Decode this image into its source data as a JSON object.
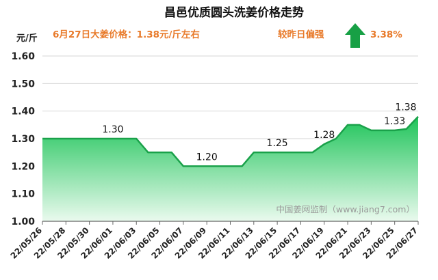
{
  "colors": {
    "accent_text": "#e87a2a",
    "line": "#1aa14a",
    "fill_top": "#1fc45a",
    "fill_bottom": "#eafaee",
    "arrow": "#17a045"
  },
  "header": {
    "price_note": "6月27日大姜价格：1.38元/斤左右",
    "compare_label": "较昨日偏强",
    "change_percent": "3.38%",
    "arrow_icon": "up-arrow-icon"
  },
  "watermark": "中国姜网监制（www.jiang7.com）",
  "chart_data": {
    "type": "area",
    "title": "昌邑优质圆头洗姜价格走势",
    "ylabel": "元/斤",
    "xlabel": "",
    "ylim": [
      1.0,
      1.6
    ],
    "yticks": [
      "1.00",
      "1.10",
      "1.20",
      "1.30",
      "1.40",
      "1.50",
      "1.60"
    ],
    "x_tick_labels": [
      "22/05/26",
      "22/05/28",
      "22/05/30",
      "22/06/01",
      "22/06/03",
      "22/06/05",
      "22/06/07",
      "22/06/09",
      "22/06/11",
      "22/06/13",
      "22/06/15",
      "22/06/17",
      "22/06/19",
      "22/06/21",
      "22/06/23",
      "22/06/25",
      "22/06/27"
    ],
    "series": [
      {
        "x": [
          "22/05/26",
          "22/05/27",
          "22/05/28",
          "22/05/29",
          "22/05/30",
          "22/05/31",
          "22/06/01",
          "22/06/02",
          "22/06/03",
          "22/06/04",
          "22/06/05",
          "22/06/06",
          "22/06/07",
          "22/06/08",
          "22/06/09",
          "22/06/10",
          "22/06/11",
          "22/06/12",
          "22/06/13",
          "22/06/14",
          "22/06/15",
          "22/06/16",
          "22/06/17",
          "22/06/18",
          "22/06/19",
          "22/06/20",
          "22/06/21",
          "22/06/22",
          "22/06/23",
          "22/06/24",
          "22/06/25",
          "22/06/26",
          "22/06/27"
        ],
        "values": [
          1.3,
          1.3,
          1.3,
          1.3,
          1.3,
          1.3,
          1.3,
          1.3,
          1.3,
          1.25,
          1.25,
          1.25,
          1.2,
          1.2,
          1.2,
          1.2,
          1.2,
          1.2,
          1.25,
          1.25,
          1.25,
          1.25,
          1.25,
          1.25,
          1.28,
          1.3,
          1.35,
          1.35,
          1.33,
          1.33,
          1.33,
          1.335,
          1.38
        ]
      }
    ],
    "data_labels": [
      {
        "x": "22/06/01",
        "text": "1.30"
      },
      {
        "x": "22/06/09",
        "text": "1.20"
      },
      {
        "x": "22/06/15",
        "text": "1.25"
      },
      {
        "x": "22/06/19",
        "text": "1.28"
      },
      {
        "x": "22/06/25",
        "text": "1.33"
      },
      {
        "x": "22/06/27",
        "text": "1.38"
      }
    ],
    "grid": true,
    "legend": "none"
  }
}
